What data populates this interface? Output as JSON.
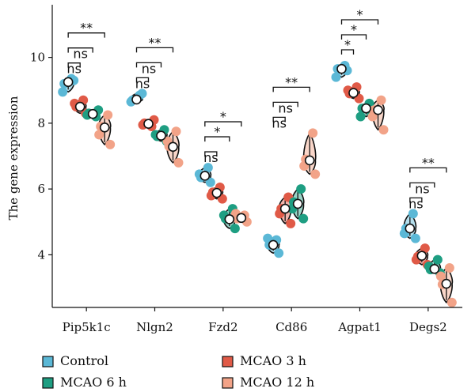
{
  "chart_data": {
    "type": "violin",
    "ylabel": "The gene expression",
    "xlabel": "",
    "ylim": [
      2.4,
      11.6
    ],
    "yticks": [
      4,
      6,
      8,
      10
    ],
    "categories": [
      "Pip5k1c",
      "Nlgn2",
      "Fzd2",
      "Cd86",
      "Agpat1",
      "Degs2"
    ],
    "series": [
      {
        "name": "Control",
        "color": "#5bb8d6",
        "means": [
          9.25,
          8.72,
          6.4,
          4.3,
          9.65,
          4.8
        ],
        "points": [
          [
            9.2,
            9.35,
            9.3,
            8.95
          ],
          [
            8.7,
            8.85,
            8.9,
            8.65
          ],
          [
            6.35,
            6.65,
            6.2,
            6.45
          ],
          [
            4.3,
            4.45,
            4.05,
            4.5
          ],
          [
            9.65,
            9.75,
            9.6,
            9.4
          ],
          [
            4.8,
            5.25,
            4.5,
            4.65
          ]
        ]
      },
      {
        "name": "MCAO 3 h",
        "color": "#e05a47",
        "means": [
          8.5,
          7.98,
          5.88,
          5.4,
          8.92,
          3.97
        ],
        "points": [
          [
            8.5,
            8.7,
            8.3,
            8.6
          ],
          [
            8.0,
            7.9,
            8.1,
            7.95
          ],
          [
            5.9,
            6.05,
            5.7,
            5.8
          ],
          [
            5.4,
            5.75,
            4.95,
            5.25
          ],
          [
            8.9,
            9.1,
            8.75,
            9.0
          ],
          [
            3.95,
            4.2,
            3.7,
            3.85
          ]
        ]
      },
      {
        "name": "MCAO 6 h",
        "color": "#1e9e82",
        "means": [
          8.28,
          7.62,
          5.08,
          5.55,
          8.45,
          3.57
        ],
        "points": [
          [
            8.3,
            8.2,
            8.4,
            8.25
          ],
          [
            7.6,
            7.8,
            7.45,
            7.65
          ],
          [
            5.1,
            5.4,
            4.8,
            5.2
          ],
          [
            5.6,
            6.0,
            5.1,
            5.4
          ],
          [
            8.45,
            8.6,
            8.3,
            8.2
          ],
          [
            3.55,
            3.85,
            3.45,
            3.65
          ]
        ]
      },
      {
        "name": "MCAO 12 h",
        "color": "#f2a388",
        "means": [
          7.87,
          7.28,
          5.12,
          6.87,
          8.4,
          3.12
        ],
        "points": [
          [
            7.9,
            8.25,
            7.35,
            7.65
          ],
          [
            7.3,
            7.75,
            6.8,
            7.45
          ],
          [
            5.1,
            5.2,
            5.0,
            5.25
          ],
          [
            6.9,
            7.7,
            6.45,
            6.7
          ],
          [
            8.4,
            8.7,
            7.8,
            8.2
          ],
          [
            3.1,
            3.6,
            2.55,
            3.35
          ]
        ]
      }
    ],
    "significance": [
      {
        "category": "Pip5k1c",
        "labels": [
          "ns",
          "ns",
          "**"
        ]
      },
      {
        "category": "Nlgn2",
        "labels": [
          "ns",
          "ns",
          "**"
        ]
      },
      {
        "category": "Fzd2",
        "labels": [
          "ns",
          "*",
          "*"
        ]
      },
      {
        "category": "Cd86",
        "labels": [
          "ns",
          "ns",
          "**"
        ]
      },
      {
        "category": "Agpat1",
        "labels": [
          "*",
          "*",
          "*"
        ]
      },
      {
        "category": "Degs2",
        "labels": [
          "ns",
          "ns",
          "**"
        ]
      }
    ],
    "legend": {
      "placement": "bottom",
      "entries": [
        "Control",
        "MCAO 3 h",
        "MCAO 6 h",
        "MCAO 12 h"
      ]
    }
  }
}
